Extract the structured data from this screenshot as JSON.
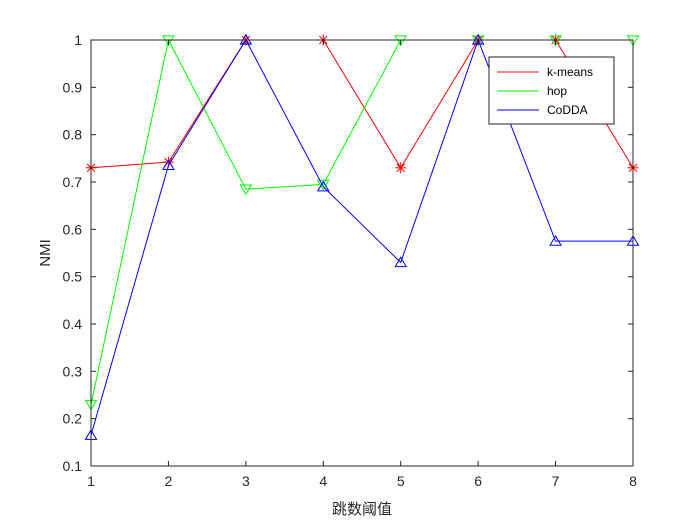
{
  "chart_data": {
    "type": "line",
    "title": "",
    "xlabel": "跳数阈值",
    "ylabel": "NMI",
    "x": [
      1,
      2,
      3,
      4,
      5,
      6,
      7,
      8
    ],
    "xlim": [
      1,
      8
    ],
    "ylim": [
      0.1,
      1.0
    ],
    "xticks": [
      1,
      2,
      3,
      4,
      5,
      6,
      7,
      8
    ],
    "yticks": [
      0.1,
      0.2,
      0.3,
      0.4,
      0.5,
      0.6,
      0.7,
      0.8,
      0.9,
      1
    ],
    "grid": false,
    "legend_position": "top-right",
    "series": [
      {
        "name": "k-means",
        "color": "#ff0000",
        "marker": "asterisk",
        "values": [
          0.73,
          0.742,
          1.0,
          1.0,
          0.73,
          1.0,
          1.0,
          0.73
        ]
      },
      {
        "name": "hop",
        "color": "#00ff00",
        "marker": "triangle-down",
        "values": [
          0.23,
          1.0,
          0.685,
          0.695,
          1.0,
          1.0,
          1.0,
          1.0
        ]
      },
      {
        "name": "CoDDA",
        "color": "#0000ff",
        "marker": "triangle-up",
        "values": [
          0.165,
          0.735,
          1.0,
          0.69,
          0.53,
          1.0,
          0.575,
          0.575
        ]
      }
    ]
  }
}
